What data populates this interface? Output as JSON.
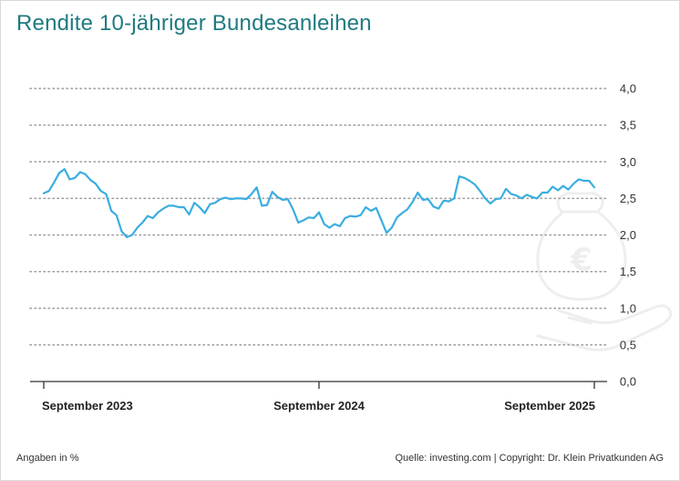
{
  "page": {
    "title": "Rendite 10-jähriger Bundesanleihen",
    "footer_left": "Angaben in %",
    "footer_right": "Quelle: investing.com | Copyright: Dr. Klein Privatkunden AG"
  },
  "colors": {
    "title": "#1f7a80",
    "line": "#3aaee0",
    "grid": "#9a9a9a",
    "axis": "#333333",
    "watermark": "#eeeeee"
  },
  "icons": [
    "euro-moneybag-hand-watermark-icon"
  ],
  "chart_data": {
    "type": "line",
    "title": "Rendite 10-jähriger Bundesanleihen",
    "xlabel": "",
    "ylabel": "",
    "ylim": [
      0,
      4
    ],
    "y_ticks": [
      "0,0",
      "0,5",
      "1,0",
      "1,5",
      "2,0",
      "2,5",
      "3,0",
      "3,5",
      "4,0"
    ],
    "y_tick_values": [
      0,
      0.5,
      1,
      1.5,
      2,
      2.5,
      3,
      3.5,
      4
    ],
    "x_ticks": [
      "September 2023",
      "September 2024",
      "September 2025"
    ],
    "x_range": [
      "2023-09",
      "2025-09"
    ],
    "grid": true,
    "legend": "none",
    "series": [
      {
        "values": [
          2.57,
          2.6,
          2.72,
          2.85,
          2.9,
          2.76,
          2.78,
          2.86,
          2.83,
          2.75,
          2.7,
          2.6,
          2.56,
          2.33,
          2.27,
          2.05,
          1.97,
          2.0,
          2.1,
          2.17,
          2.26,
          2.23,
          2.31,
          2.36,
          2.4,
          2.4,
          2.38,
          2.38,
          2.28,
          2.44,
          2.38,
          2.3,
          2.42,
          2.44,
          2.49,
          2.51,
          2.49,
          2.5,
          2.5,
          2.49,
          2.56,
          2.65,
          2.4,
          2.41,
          2.59,
          2.52,
          2.48,
          2.49,
          2.35,
          2.17,
          2.2,
          2.24,
          2.23,
          2.31,
          2.15,
          2.1,
          2.15,
          2.12,
          2.23,
          2.26,
          2.25,
          2.27,
          2.38,
          2.33,
          2.37,
          2.2,
          2.03,
          2.1,
          2.24,
          2.3,
          2.35,
          2.45,
          2.58,
          2.48,
          2.49,
          2.39,
          2.36,
          2.47,
          2.46,
          2.5,
          2.8,
          2.78,
          2.74,
          2.69,
          2.6,
          2.5,
          2.43,
          2.49,
          2.5,
          2.63,
          2.56,
          2.54,
          2.5,
          2.55,
          2.52,
          2.5,
          2.58,
          2.58,
          2.66,
          2.61,
          2.67,
          2.62,
          2.7,
          2.76,
          2.74,
          2.74,
          2.65
        ]
      }
    ]
  }
}
